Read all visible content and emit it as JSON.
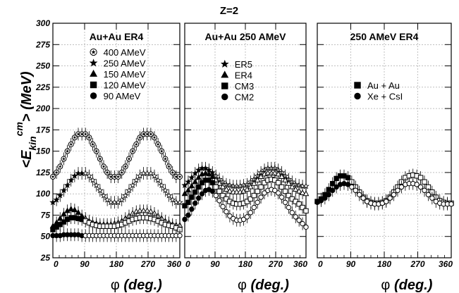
{
  "figure": {
    "title": "Z=2",
    "ylabel_main": "<E",
    "ylabel_sub": "kin",
    "ylabel_sup": "cm",
    "ylabel_end": "> (MeV)",
    "xlabel_phi": "φ",
    "xlabel_unit": " (deg.)"
  },
  "chart_data": [
    {
      "type": "line",
      "title": "Au+Au ER4",
      "xlabel": "φ (deg.)",
      "ylabel": "<E_kin^cm> (MeV)",
      "xlim": [
        0,
        360
      ],
      "ylim": [
        25,
        300
      ],
      "x_ticks": [
        0,
        90,
        180,
        270,
        360
      ],
      "y_ticks": [
        25,
        50,
        75,
        100,
        125,
        150,
        175,
        200,
        225,
        250,
        275,
        300
      ],
      "grid": true,
      "legend_position": "upper-middle",
      "series": [
        {
          "name": "400 AMeV",
          "marker": "circle-star",
          "closed": false,
          "mean": 145,
          "amp": 25,
          "values": [
            120,
            125,
            132,
            141,
            150,
            158,
            166,
            170,
            170,
            170,
            166,
            158,
            150,
            141,
            132,
            125,
            120,
            120,
            120,
            125,
            132,
            141,
            150,
            158,
            166,
            170,
            170,
            170,
            166,
            158,
            150,
            141,
            132,
            125,
            120,
            120
          ]
        },
        {
          "name": "250 AMeV",
          "marker": "star",
          "closed": false,
          "mean": 107,
          "amp": 17,
          "values": [
            90,
            93,
            98,
            104,
            110,
            116,
            121,
            124,
            124,
            124,
            121,
            116,
            110,
            104,
            98,
            93,
            90,
            90,
            90,
            93,
            98,
            104,
            110,
            116,
            121,
            124,
            124,
            124,
            121,
            116,
            110,
            104,
            98,
            93,
            90,
            90
          ]
        },
        {
          "name": "150 AMeV",
          "marker": "triangle",
          "closed": false,
          "mean": 72,
          "amp": 9,
          "values": [
            62,
            66,
            71,
            76,
            80,
            82,
            81,
            78,
            74,
            71,
            68,
            66,
            65,
            64,
            64,
            64,
            64,
            65,
            66,
            68,
            71,
            74,
            77,
            79,
            80,
            80,
            80,
            79,
            77,
            74,
            71,
            68,
            66,
            64,
            63,
            63
          ]
        },
        {
          "name": "120 AMeV",
          "marker": "square",
          "closed": false,
          "mean": 65,
          "amp": 7,
          "values": [
            58,
            61,
            64,
            67,
            70,
            72,
            72,
            71,
            70,
            68,
            66,
            64,
            63,
            62,
            62,
            62,
            62,
            62,
            63,
            64,
            66,
            68,
            70,
            71,
            72,
            72,
            72,
            71,
            70,
            68,
            66,
            64,
            63,
            62,
            60,
            58
          ]
        },
        {
          "name": "90 AMeV",
          "marker": "circle",
          "closed": false,
          "mean": 52,
          "amp": 2,
          "values": [
            51,
            51,
            51,
            52,
            52,
            52,
            52,
            52,
            51,
            51,
            51,
            51,
            51,
            51,
            51,
            51,
            51,
            51,
            51,
            51,
            51,
            51,
            51,
            51,
            51,
            51,
            51,
            51,
            51,
            51,
            51,
            51,
            51,
            51,
            51,
            51
          ]
        }
      ]
    },
    {
      "type": "line",
      "title": "Au+Au 250 AMeV",
      "xlabel": "φ (deg.)",
      "xlim": [
        0,
        360
      ],
      "ylim": [
        25,
        300
      ],
      "x_ticks": [
        0,
        90,
        180,
        270,
        360
      ],
      "grid": true,
      "legend_position": "upper-middle",
      "series": [
        {
          "name": "ER5",
          "marker": "star",
          "closed": false,
          "values": [
            110,
            114,
            119,
            124,
            128,
            130,
            130,
            128,
            125,
            121,
            117,
            114,
            111,
            110,
            109,
            109,
            109,
            110,
            111,
            114,
            117,
            121,
            125,
            128,
            130,
            130,
            130,
            128,
            125,
            121,
            117,
            114,
            111,
            110,
            109,
            109
          ]
        },
        {
          "name": "ER4",
          "marker": "triangle",
          "closed": false,
          "values": [
            100,
            104,
            109,
            114,
            119,
            123,
            124,
            123,
            120,
            116,
            112,
            108,
            105,
            103,
            102,
            102,
            102,
            103,
            105,
            108,
            112,
            116,
            120,
            123,
            124,
            124,
            124,
            123,
            120,
            116,
            112,
            108,
            105,
            103,
            101,
            100
          ]
        },
        {
          "name": "CM3",
          "marker": "square",
          "closed": false,
          "values": [
            86,
            90,
            96,
            102,
            108,
            113,
            116,
            116,
            113,
            108,
            103,
            98,
            94,
            91,
            89,
            88,
            88,
            89,
            91,
            94,
            98,
            103,
            108,
            113,
            116,
            117,
            116,
            113,
            108,
            103,
            98,
            94,
            91,
            88,
            84,
            80
          ]
        },
        {
          "name": "CM2",
          "marker": "circle",
          "closed": false,
          "values": [
            70,
            75,
            82,
            89,
            95,
            100,
            104,
            105,
            103,
            98,
            92,
            85,
            79,
            74,
            71,
            69,
            69,
            70,
            73,
            78,
            84,
            90,
            96,
            101,
            104,
            105,
            104,
            101,
            96,
            90,
            84,
            78,
            73,
            69,
            65,
            61
          ]
        }
      ]
    },
    {
      "type": "line",
      "title": "250 AMeV ER4",
      "xlabel": "φ (deg.)",
      "xlim": [
        0,
        360
      ],
      "ylim": [
        25,
        300
      ],
      "x_ticks": [
        0,
        90,
        180,
        270,
        360
      ],
      "grid": true,
      "legend_position": "upper-middle",
      "series": [
        {
          "name": "Au + Au",
          "marker": "square",
          "closed": false,
          "values": [
            91,
            94,
            99,
            105,
            112,
            118,
            121,
            121,
            119,
            114,
            108,
            102,
            96,
            92,
            90,
            89,
            89,
            90,
            92,
            96,
            102,
            108,
            114,
            119,
            121,
            122,
            121,
            119,
            114,
            108,
            102,
            96,
            92,
            90,
            89,
            89
          ]
        },
        {
          "name": "Xe + CsI",
          "marker": "circle",
          "closed": false,
          "values": [
            90,
            92,
            95,
            99,
            104,
            108,
            111,
            112,
            111,
            108,
            104,
            99,
            95,
            91,
            89,
            88,
            88,
            89,
            91,
            95,
            99,
            104,
            108,
            111,
            112,
            112,
            111,
            108,
            104,
            99,
            95,
            91,
            89,
            88,
            88,
            88
          ]
        }
      ]
    }
  ]
}
